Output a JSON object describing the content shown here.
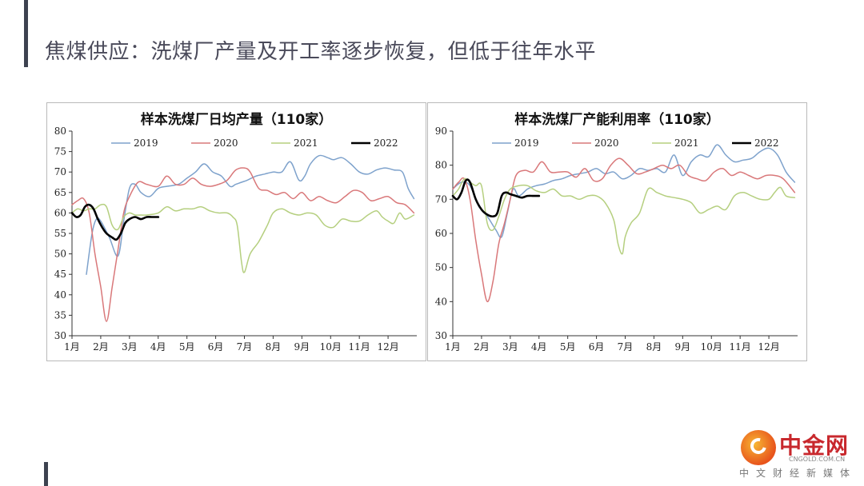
{
  "slide": {
    "title": "焦煤供应：洗煤厂产量及开工率逐步恢复，但低于往年水平"
  },
  "logo": {
    "name": "中金网",
    "url": "CNGOLD.COM.CN",
    "tagline": "中文财经新媒体"
  },
  "colors": {
    "2019": "#7ea2cc",
    "2020": "#d9787a",
    "2021": "#b5cf7f",
    "2022": "#000000"
  },
  "chart_data": [
    {
      "type": "line",
      "title": "样本洗煤厂日均产量（110家）",
      "xlabel": "",
      "ylabel": "",
      "xlim": [
        0,
        12
      ],
      "ylim": [
        30,
        80
      ],
      "yticks": [
        30,
        35,
        40,
        45,
        50,
        55,
        60,
        65,
        70,
        75,
        80
      ],
      "x_tick_labels": [
        "1月",
        "2月",
        "3月",
        "4月",
        "5月",
        "6月",
        "7月",
        "8月",
        "9月",
        "10月",
        "11月",
        "12月"
      ],
      "legend": {
        "position": "top",
        "entries": [
          "2019",
          "2020",
          "2021",
          "2022"
        ]
      },
      "grid": false,
      "series": [
        {
          "name": "2019",
          "color": "#7ea2cc",
          "x": [
            0.5,
            0.7,
            0.85,
            1.0,
            1.3,
            1.6,
            1.8,
            2.0,
            2.2,
            2.4,
            2.7,
            3.0,
            3.3,
            3.7,
            4.0,
            4.3,
            4.6,
            4.9,
            5.2,
            5.5,
            5.7,
            5.9,
            6.1,
            6.4,
            6.7,
            7.0,
            7.3,
            7.6,
            7.9,
            8.1,
            8.3,
            8.6,
            8.9,
            9.1,
            9.4,
            9.7,
            10.0,
            10.3,
            10.6,
            10.9,
            11.2,
            11.5,
            11.7,
            11.9
          ],
          "y": [
            45,
            55,
            58.5,
            58,
            54,
            49.5,
            58,
            66,
            67,
            65,
            64,
            66,
            66.5,
            67,
            68.5,
            70,
            72,
            70,
            69,
            66.5,
            67,
            67.5,
            68,
            69,
            69.5,
            70,
            70,
            72.5,
            68,
            69,
            72,
            74,
            73.5,
            73,
            73.5,
            72,
            70,
            69.5,
            70.5,
            71,
            70.5,
            70,
            66,
            63.5
          ]
        },
        {
          "name": "2020",
          "color": "#d9787a",
          "x": [
            0,
            0.2,
            0.4,
            0.6,
            0.8,
            1.0,
            1.2,
            1.4,
            1.6,
            1.8,
            2.0,
            2.3,
            2.6,
            3.0,
            3.3,
            3.6,
            3.9,
            4.2,
            4.5,
            4.8,
            5.1,
            5.4,
            5.7,
            6.0,
            6.2,
            6.5,
            6.8,
            7.1,
            7.4,
            7.7,
            8.0,
            8.3,
            8.6,
            8.9,
            9.2,
            9.5,
            9.8,
            10.1,
            10.4,
            10.7,
            11.0,
            11.3,
            11.6,
            11.9
          ],
          "y": [
            62,
            63,
            63.5,
            60,
            50,
            42,
            33.5,
            42,
            51,
            60,
            64,
            67.5,
            67,
            66.5,
            69,
            67,
            67,
            68.5,
            67,
            66.5,
            67,
            68,
            70.5,
            71,
            70,
            66,
            65.5,
            64.5,
            65,
            63.5,
            65,
            63,
            64,
            63,
            62.5,
            64,
            65.5,
            65,
            63,
            63.5,
            64,
            62.5,
            62,
            60
          ]
        },
        {
          "name": "2021",
          "color": "#b5cf7f",
          "x": [
            0,
            0.2,
            0.4,
            0.6,
            0.8,
            1.0,
            1.2,
            1.4,
            1.6,
            1.8,
            2.0,
            2.2,
            2.4,
            2.6,
            3.0,
            3.3,
            3.6,
            3.9,
            4.2,
            4.5,
            4.8,
            5.1,
            5.4,
            5.6,
            5.75,
            5.9,
            6.0,
            6.2,
            6.5,
            6.8,
            7.0,
            7.3,
            7.6,
            7.9,
            8.2,
            8.5,
            8.8,
            9.1,
            9.4,
            9.7,
            10.0,
            10.3,
            10.6,
            10.8,
            11.0,
            11.2,
            11.4,
            11.6,
            11.9
          ],
          "y": [
            60,
            61,
            60.5,
            61,
            61,
            62,
            61.5,
            57,
            56,
            59,
            60,
            59.5,
            59.5,
            59.5,
            60,
            61.5,
            60.5,
            61,
            61,
            61.5,
            60.5,
            60,
            60,
            59,
            57,
            48,
            45.5,
            50,
            53,
            57,
            60,
            61,
            60,
            59.5,
            60,
            59.5,
            57,
            56.5,
            58.5,
            58,
            58,
            59.5,
            60.5,
            59,
            58,
            57.5,
            60,
            58.5,
            59.5
          ]
        },
        {
          "name": "2022",
          "color": "#000000",
          "x": [
            0,
            0.15,
            0.3,
            0.45,
            0.6,
            0.75,
            0.9,
            1.05,
            1.2,
            1.4,
            1.55,
            1.7,
            1.85,
            2.0,
            2.2,
            2.4,
            2.6,
            2.8,
            3.0
          ],
          "y": [
            60,
            59,
            59.5,
            61.5,
            62,
            61,
            58.5,
            56.5,
            55,
            54,
            53.5,
            55,
            57.5,
            58.5,
            59,
            58.5,
            59,
            59,
            59
          ]
        }
      ]
    },
    {
      "type": "line",
      "title": "样本洗煤厂产能利用率（110家）",
      "xlabel": "",
      "ylabel": "",
      "xlim": [
        0,
        12
      ],
      "ylim": [
        30,
        90
      ],
      "yticks": [
        30,
        40,
        50,
        60,
        70,
        80,
        90
      ],
      "x_tick_labels": [
        "1月",
        "2月",
        "3月",
        "4月",
        "5月",
        "6月",
        "7月",
        "8月",
        "9月",
        "10月",
        "11月",
        "12月"
      ],
      "legend": {
        "position": "top",
        "entries": [
          "2019",
          "2020",
          "2021",
          "2022"
        ]
      },
      "grid": false,
      "series": [
        {
          "name": "2019",
          "color": "#7ea2cc",
          "x": [
            0,
            0.3,
            0.6,
            0.9,
            1.2,
            1.5,
            1.7,
            1.9,
            2.1,
            2.3,
            2.6,
            2.9,
            3.2,
            3.5,
            3.8,
            4.1,
            4.4,
            4.7,
            5.0,
            5.3,
            5.6,
            5.9,
            6.2,
            6.5,
            6.8,
            7.1,
            7.4,
            7.7,
            8.0,
            8.3,
            8.6,
            8.9,
            9.2,
            9.5,
            9.8,
            10.1,
            10.4,
            10.7,
            11.0,
            11.3,
            11.6,
            11.9
          ],
          "y": [
            73,
            75,
            74,
            68,
            65,
            61,
            59,
            66,
            73,
            71,
            73,
            74,
            74.5,
            75.5,
            76,
            77,
            77.5,
            78,
            79,
            77.5,
            78,
            76,
            77,
            79,
            78.5,
            79,
            78,
            83,
            77,
            81,
            83,
            82.5,
            86,
            83,
            81,
            81.5,
            82,
            84,
            85,
            83,
            78,
            75
          ]
        },
        {
          "name": "2020",
          "color": "#d9787a",
          "x": [
            0,
            0.2,
            0.4,
            0.6,
            0.8,
            1.0,
            1.2,
            1.4,
            1.6,
            1.8,
            2.0,
            2.2,
            2.5,
            2.8,
            3.1,
            3.4,
            3.7,
            4.0,
            4.3,
            4.6,
            4.9,
            5.2,
            5.5,
            5.8,
            6.1,
            6.4,
            6.7,
            7.0,
            7.3,
            7.6,
            7.9,
            8.2,
            8.5,
            8.8,
            9.1,
            9.4,
            9.7,
            10.0,
            10.3,
            10.6,
            10.9,
            11.2,
            11.5,
            11.9
          ],
          "y": [
            73,
            75,
            76,
            70,
            58,
            48,
            40,
            46,
            57,
            63,
            70,
            77,
            78.5,
            78,
            81,
            78,
            78,
            78,
            76.5,
            79,
            75.5,
            76,
            80,
            82,
            80,
            77.5,
            78,
            79,
            80,
            79,
            80,
            77,
            76,
            75.5,
            78,
            79,
            77,
            78,
            77,
            76,
            77,
            77,
            76,
            72
          ]
        },
        {
          "name": "2021",
          "color": "#b5cf7f",
          "x": [
            0,
            0.2,
            0.4,
            0.6,
            0.8,
            1.0,
            1.2,
            1.4,
            1.6,
            1.8,
            2.0,
            2.3,
            2.6,
            2.9,
            3.2,
            3.5,
            3.8,
            4.1,
            4.4,
            4.7,
            5.0,
            5.3,
            5.6,
            5.75,
            5.9,
            6.0,
            6.2,
            6.5,
            6.8,
            7.1,
            7.4,
            7.7,
            8.0,
            8.3,
            8.6,
            8.9,
            9.2,
            9.5,
            9.8,
            10.1,
            10.4,
            10.7,
            11.0,
            11.2,
            11.4,
            11.6,
            11.9
          ],
          "y": [
            71,
            73,
            76,
            75,
            74,
            74,
            63,
            61,
            65,
            70,
            73,
            74,
            74,
            72.5,
            72,
            73,
            71,
            71,
            70,
            71,
            71,
            69,
            64,
            57,
            54,
            59,
            63,
            66,
            73,
            72,
            71,
            70.5,
            70,
            69,
            66,
            67,
            68,
            67,
            71,
            72,
            71,
            70,
            70,
            72,
            73.5,
            71,
            70.5
          ]
        },
        {
          "name": "2022",
          "color": "#000000",
          "x": [
            0,
            0.15,
            0.3,
            0.45,
            0.6,
            0.8,
            1.0,
            1.2,
            1.4,
            1.55,
            1.7,
            1.85,
            2.0,
            2.2,
            2.4,
            2.6,
            2.8,
            3.0
          ],
          "y": [
            71,
            70,
            72,
            75.5,
            75,
            70,
            67,
            65.5,
            65,
            66,
            71,
            72,
            71.5,
            71,
            70.5,
            71,
            71,
            71
          ]
        }
      ]
    }
  ]
}
